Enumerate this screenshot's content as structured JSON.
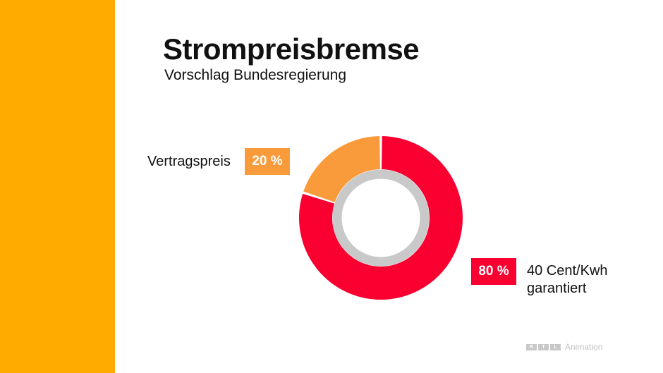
{
  "title": "Strompreisbremse",
  "subtitle": "Vorschlag Bundesregierung",
  "colors": {
    "sidebar": "#ffab00",
    "orange": "#f99b3a",
    "red": "#f90031",
    "hole_ring": "#c9c9c9"
  },
  "chart_data": {
    "type": "pie",
    "title": "Strompreisbremse",
    "subtitle": "Vorschlag Bundesregierung",
    "slices": [
      {
        "label": "Vertragspreis",
        "value": 20,
        "display": "20 %",
        "color": "#f99b3a"
      },
      {
        "label": "40 Cent/Kwh garantiert",
        "value": 80,
        "display": "80 %",
        "color": "#f90031"
      }
    ]
  },
  "labels": {
    "left": "Vertragspreis",
    "right_line1": "40 Cent/Kwh",
    "right_line2": "garantiert"
  },
  "watermark": {
    "logo": [
      "R",
      "T",
      "L"
    ],
    "text": "Animation"
  }
}
